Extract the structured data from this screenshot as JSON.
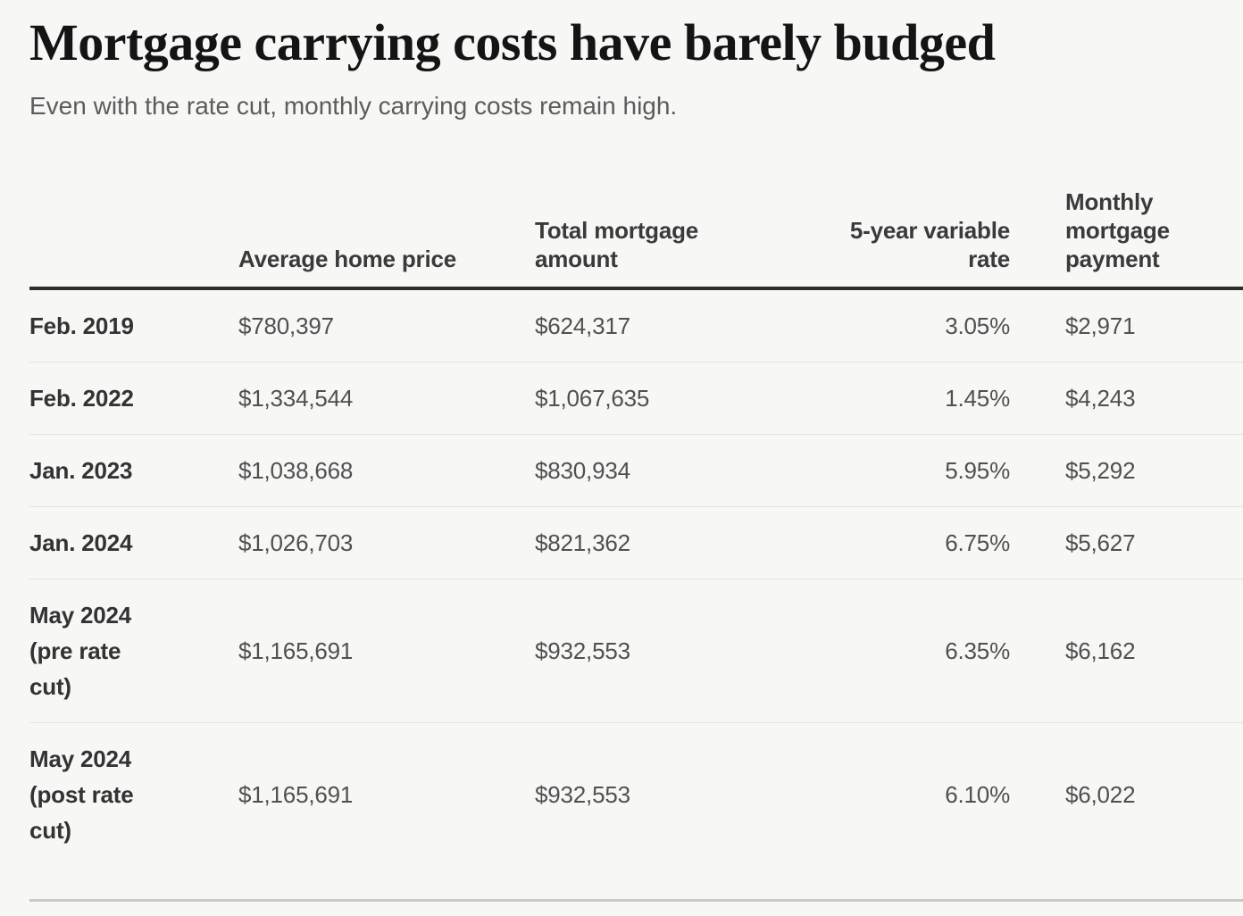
{
  "header": {
    "title": "Mortgage carrying costs have barely budged",
    "subtitle": "Even with the rate cut, monthly carrying costs remain high."
  },
  "table": {
    "columns": [
      {
        "label": ""
      },
      {
        "label": "Average home price"
      },
      {
        "label": "Total mortgage amount"
      },
      {
        "label": "5-year variable rate"
      },
      {
        "label": "Monthly mortgage payment"
      }
    ],
    "rows": [
      {
        "label": "Feb. 2019",
        "values": [
          "$780,397",
          "$624,317",
          "3.05%",
          "$2,971"
        ]
      },
      {
        "label": "Feb. 2022",
        "values": [
          "$1,334,544",
          "$1,067,635",
          "1.45%",
          "$4,243"
        ]
      },
      {
        "label": "Jan. 2023",
        "values": [
          "$1,038,668",
          "$830,934",
          "5.95%",
          "$5,292"
        ]
      },
      {
        "label": "Jan. 2024",
        "values": [
          "$1,026,703",
          "$821,362",
          "6.75%",
          "$5,627"
        ]
      },
      {
        "label": "May 2024 (pre rate cut)",
        "values": [
          "$1,165,691",
          "$932,553",
          "6.35%",
          "$6,162"
        ]
      },
      {
        "label": "May 2024 (post rate cut)",
        "values": [
          "$1,165,691",
          "$932,553",
          "6.10%",
          "$6,022"
        ]
      }
    ]
  },
  "colors": {
    "background": "#f7f7f6",
    "title_text": "#141414",
    "subtitle_text": "#5c5c5c",
    "header_text": "#3a3a3a",
    "row_label_text": "#333333",
    "value_text": "#505050",
    "header_rule": "#2e2e2e",
    "row_divider": "#e3e3e1",
    "bottom_rule": "#c9c9c9"
  },
  "chart_data": {
    "type": "table",
    "title": "Mortgage carrying costs have barely budged",
    "subtitle": "Even with the rate cut, monthly carrying costs remain high.",
    "columns": [
      "Average home price",
      "Total mortgage amount",
      "5-year variable rate",
      "Monthly mortgage payment"
    ],
    "categories": [
      "Feb. 2019",
      "Feb. 2022",
      "Jan. 2023",
      "Jan. 2024",
      "May 2024 (pre rate cut)",
      "May 2024 (post rate cut)"
    ],
    "series": [
      {
        "name": "Average home price",
        "values": [
          780397,
          1334544,
          1038668,
          1026703,
          1165691,
          1165691
        ]
      },
      {
        "name": "Total mortgage amount",
        "values": [
          624317,
          1067635,
          830934,
          821362,
          932553,
          932553
        ]
      },
      {
        "name": "5-year variable rate (%)",
        "values": [
          3.05,
          1.45,
          5.95,
          6.75,
          6.35,
          6.1
        ]
      },
      {
        "name": "Monthly mortgage payment",
        "values": [
          2971,
          4243,
          5292,
          5627,
          6162,
          6022
        ]
      }
    ]
  }
}
